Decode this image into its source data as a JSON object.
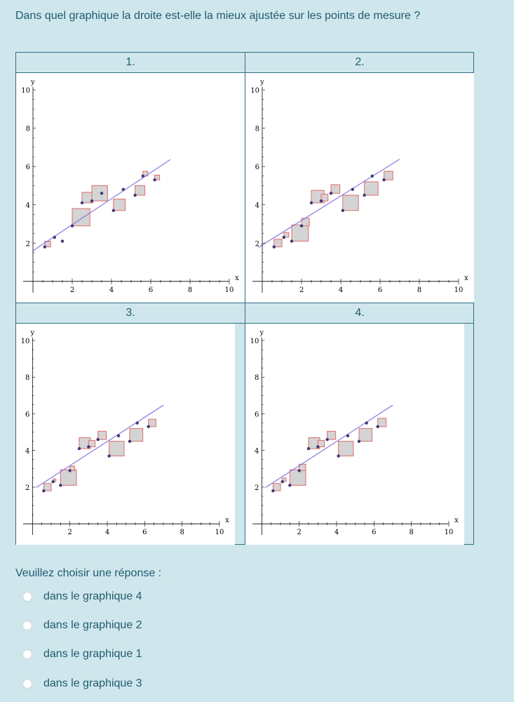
{
  "question": "Dans quel graphique la droite est-elle la mieux ajustée sur les points de mesure ?",
  "prompt": "Veuillez choisir une réponse :",
  "options": [
    {
      "label": "dans le graphique 4"
    },
    {
      "label": "dans le graphique 2"
    },
    {
      "label": "dans le graphique 1"
    },
    {
      "label": "dans le graphique 3"
    }
  ],
  "colors": {
    "line": "#8a7ae0",
    "square_fill": "#d4d4d4",
    "square_stroke": "#e06b6b",
    "point": "#3b3b7a"
  },
  "chart_data": [
    {
      "type": "scatter",
      "title": "1.",
      "xlabel": "x",
      "ylabel": "y",
      "xlim": [
        -0.5,
        10
      ],
      "ylim": [
        -0.3,
        10
      ],
      "xticks": [
        2,
        4,
        6,
        8,
        10
      ],
      "yticks": [
        2,
        4,
        6,
        8,
        10
      ],
      "points": [
        [
          0.6,
          1.8
        ],
        [
          1.1,
          2.3
        ],
        [
          1.5,
          2.1
        ],
        [
          2.0,
          2.9
        ],
        [
          2.5,
          4.1
        ],
        [
          3.0,
          4.2
        ],
        [
          3.5,
          4.6
        ],
        [
          4.1,
          3.7
        ],
        [
          4.6,
          4.8
        ],
        [
          5.2,
          4.5
        ],
        [
          5.6,
          5.5
        ],
        [
          6.2,
          5.3
        ]
      ],
      "fit_line": {
        "slope": 0.68,
        "intercept": 1.6,
        "x_range": [
          0,
          7
        ]
      },
      "squares": [
        [
          0.6,
          1.8,
          0.3
        ],
        [
          2.0,
          2.9,
          0.9
        ],
        [
          2.5,
          4.1,
          0.55
        ],
        [
          3.0,
          4.2,
          0.8
        ],
        [
          4.1,
          3.7,
          0.6
        ],
        [
          5.2,
          4.5,
          0.5
        ],
        [
          5.6,
          5.5,
          0.25
        ],
        [
          6.2,
          5.3,
          0.25
        ]
      ]
    },
    {
      "type": "scatter",
      "title": "2.",
      "xlabel": "x",
      "ylabel": "y",
      "xlim": [
        -0.5,
        10
      ],
      "ylim": [
        -0.3,
        10
      ],
      "xticks": [
        2,
        4,
        6,
        8,
        10
      ],
      "yticks": [
        2,
        4,
        6,
        8,
        10
      ],
      "points": [
        [
          0.6,
          1.8
        ],
        [
          1.1,
          2.3
        ],
        [
          1.5,
          2.1
        ],
        [
          2.0,
          2.9
        ],
        [
          2.5,
          4.1
        ],
        [
          3.0,
          4.2
        ],
        [
          3.5,
          4.6
        ],
        [
          4.1,
          3.7
        ],
        [
          4.6,
          4.8
        ],
        [
          5.2,
          4.5
        ],
        [
          5.6,
          5.5
        ],
        [
          6.2,
          5.3
        ]
      ],
      "fit_line": {
        "slope": 0.64,
        "intercept": 1.9,
        "x_range": [
          -0.2,
          7
        ]
      },
      "squares": [
        [
          0.6,
          1.8,
          0.4
        ],
        [
          1.1,
          2.3,
          0.25
        ],
        [
          1.5,
          2.1,
          0.85
        ],
        [
          2.0,
          2.9,
          0.4
        ],
        [
          2.5,
          4.1,
          0.65
        ],
        [
          3.0,
          4.2,
          0.35
        ],
        [
          3.5,
          4.6,
          0.45
        ],
        [
          4.1,
          3.7,
          0.8
        ],
        [
          5.2,
          4.5,
          0.7
        ],
        [
          6.2,
          5.3,
          0.45
        ]
      ]
    },
    {
      "type": "scatter",
      "title": "3.",
      "xlabel": "x",
      "ylabel": "y",
      "xlim": [
        -0.5,
        10
      ],
      "ylim": [
        -0.3,
        10
      ],
      "xticks": [
        2,
        4,
        6,
        8,
        10
      ],
      "yticks": [
        2,
        4,
        6,
        8,
        10
      ],
      "points": [
        [
          0.6,
          1.8
        ],
        [
          1.1,
          2.3
        ],
        [
          1.5,
          2.1
        ],
        [
          2.0,
          2.9
        ],
        [
          2.5,
          4.1
        ],
        [
          3.0,
          4.2
        ],
        [
          3.5,
          4.6
        ],
        [
          4.1,
          3.7
        ],
        [
          4.6,
          4.8
        ],
        [
          5.2,
          4.5
        ],
        [
          5.6,
          5.5
        ],
        [
          6.2,
          5.3
        ]
      ],
      "fit_line": {
        "slope": 0.66,
        "intercept": 1.85,
        "x_range": [
          0.2,
          7
        ]
      },
      "squares": [
        [
          0.6,
          1.8,
          0.4
        ],
        [
          1.1,
          2.3,
          0.15
        ],
        [
          1.5,
          2.1,
          0.85
        ],
        [
          2.0,
          2.9,
          0.25
        ],
        [
          2.5,
          4.1,
          0.6
        ],
        [
          3.0,
          4.2,
          0.35
        ],
        [
          3.5,
          4.6,
          0.45
        ],
        [
          4.1,
          3.7,
          0.8
        ],
        [
          5.2,
          4.5,
          0.7
        ],
        [
          6.2,
          5.3,
          0.4
        ]
      ]
    },
    {
      "type": "scatter",
      "title": "4.",
      "xlabel": "x",
      "ylabel": "y",
      "xlim": [
        -0.5,
        10
      ],
      "ylim": [
        -0.3,
        10
      ],
      "xticks": [
        2,
        4,
        6,
        8,
        10
      ],
      "yticks": [
        2,
        4,
        6,
        8,
        10
      ],
      "points": [
        [
          0.6,
          1.8
        ],
        [
          1.1,
          2.3
        ],
        [
          1.5,
          2.1
        ],
        [
          2.0,
          2.9
        ],
        [
          2.5,
          4.1
        ],
        [
          3.0,
          4.2
        ],
        [
          3.5,
          4.6
        ],
        [
          4.1,
          3.7
        ],
        [
          4.6,
          4.8
        ],
        [
          5.2,
          4.5
        ],
        [
          5.6,
          5.5
        ],
        [
          6.2,
          5.3
        ]
      ],
      "fit_line": {
        "slope": 0.66,
        "intercept": 1.85,
        "x_range": [
          0.2,
          7
        ]
      },
      "squares": [
        [
          0.6,
          1.8,
          0.4
        ],
        [
          1.1,
          2.3,
          0.2
        ],
        [
          1.5,
          2.1,
          0.85
        ],
        [
          2.0,
          2.9,
          0.35
        ],
        [
          2.5,
          4.1,
          0.6
        ],
        [
          3.0,
          4.2,
          0.35
        ],
        [
          3.5,
          4.6,
          0.45
        ],
        [
          4.1,
          3.7,
          0.8
        ],
        [
          5.2,
          4.5,
          0.7
        ],
        [
          6.2,
          5.3,
          0.45
        ]
      ]
    }
  ]
}
